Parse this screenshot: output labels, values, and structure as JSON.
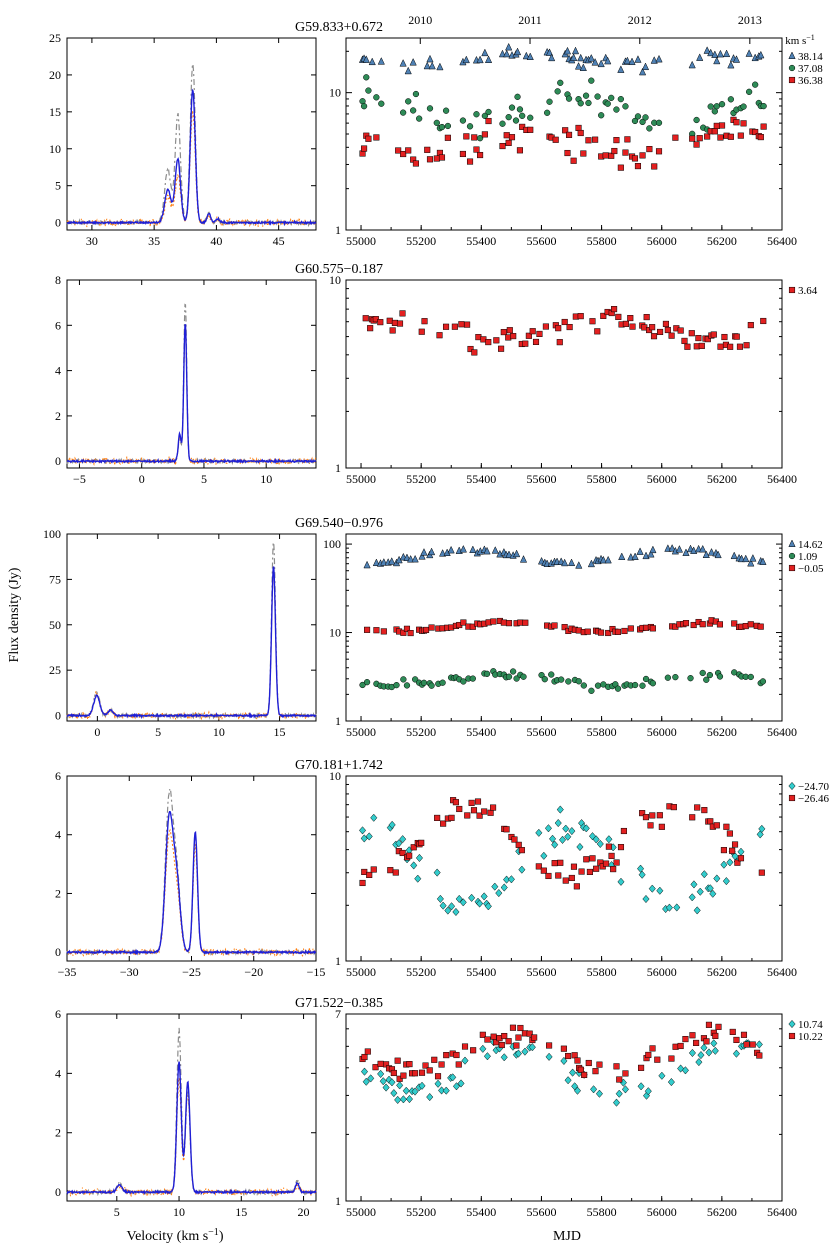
{
  "figure": {
    "ylabel": "Flux density (Jy)",
    "xlabel_spec": "Velocity (km s",
    "xlabel_spec_sup": "−1",
    "xlabel_spec_tail": ")",
    "xlabel_time": "MJD",
    "legend_unit": "km s",
    "legend_unit_sup": "−1",
    "year_ticks": [
      {
        "label": "2010",
        "mjd": 55197
      },
      {
        "label": "2011",
        "mjd": 55562
      },
      {
        "label": "2012",
        "mjd": 55927
      },
      {
        "label": "2013",
        "mjd": 56293
      }
    ],
    "colors": {
      "triangle": "#4f81b4",
      "circle": "#2e8b57",
      "square": "#e32020",
      "diamond": "#33cccc",
      "spec_main": "#1f1fd6",
      "spec_dash": "#8c8c8c",
      "spec_dot": "#ff7f0e"
    }
  },
  "chart_data": [
    {
      "type": "line",
      "source": "G59.833+0.672",
      "spectrum": {
        "xlim": [
          28,
          48
        ],
        "ylim": [
          -1,
          25
        ],
        "xticks": [
          30,
          35,
          40,
          45
        ],
        "yticks": [
          0,
          5,
          10,
          15,
          20,
          25
        ],
        "peaks": [
          {
            "v": 36.1,
            "a": 4.5,
            "w": 0.25,
            "dash": 7.2,
            "dot": 3.6
          },
          {
            "v": 36.9,
            "a": 8.6,
            "w": 0.22,
            "dash": 14.5,
            "dot": 6.5
          },
          {
            "v": 38.1,
            "a": 18.0,
            "w": 0.2,
            "dash": 21.5,
            "dot": 15.0
          },
          {
            "v": 39.4,
            "a": 1.2,
            "w": 0.15,
            "dash": 1.3,
            "dot": 1.0
          },
          {
            "v": 40.1,
            "a": 0.5,
            "w": 0.15,
            "dash": 0.6,
            "dot": 0.4
          }
        ]
      },
      "timeseries": {
        "log": true,
        "xlim": [
          54950,
          56400
        ],
        "ylim": [
          1,
          25
        ],
        "xticks": [
          55000,
          55200,
          55400,
          55600,
          55800,
          56000,
          56200,
          56400
        ],
        "yticks": [
          1,
          10
        ],
        "series": [
          {
            "name": "38.14",
            "marker": "triangle",
            "mean": 17.5,
            "scatter": 0.08,
            "wave": 0.04
          },
          {
            "name": "37.08",
            "marker": "circle",
            "mean": 7.6,
            "scatter": 0.16,
            "wave": 0.12
          },
          {
            "name": "36.38",
            "marker": "square",
            "mean": 4.3,
            "scatter": 0.18,
            "wave": 0.1
          }
        ]
      }
    },
    {
      "type": "line",
      "source": "G60.575−0.187",
      "spectrum": {
        "xlim": [
          -6,
          14
        ],
        "ylim": [
          -0.3,
          8
        ],
        "xticks": [
          -5,
          0,
          5,
          10
        ],
        "yticks": [
          0,
          2,
          4,
          6,
          8
        ],
        "peaks": [
          {
            "v": 3.05,
            "a": 1.2,
            "w": 0.12,
            "dash": 1.0,
            "dot": 1.1
          },
          {
            "v": 3.5,
            "a": 6.1,
            "w": 0.12,
            "dash": 7.0,
            "dot": 5.8
          }
        ]
      },
      "timeseries": {
        "log": true,
        "xlim": [
          54950,
          56400
        ],
        "ylim": [
          1,
          10
        ],
        "xticks": [
          55000,
          55200,
          55400,
          55600,
          55800,
          56000,
          56200,
          56400
        ],
        "yticks": [
          1,
          10
        ],
        "series": [
          {
            "name": "3.64",
            "marker": "square",
            "mean": 5.4,
            "scatter": 0.1,
            "wave": 0.05
          }
        ]
      }
    },
    {
      "type": "line",
      "source": "G69.540−0.976",
      "spectrum": {
        "xlim": [
          -2.5,
          18
        ],
        "ylim": [
          -3,
          100
        ],
        "xticks": [
          0,
          5,
          10,
          15
        ],
        "yticks": [
          0,
          25,
          50,
          75,
          100
        ],
        "peaks": [
          {
            "v": -0.05,
            "a": 11.0,
            "w": 0.25,
            "dash": 12.5,
            "dot": 11.5
          },
          {
            "v": 1.09,
            "a": 3.0,
            "w": 0.2,
            "dash": 3.3,
            "dot": 3.1
          },
          {
            "v": 14.5,
            "a": 82.0,
            "w": 0.16,
            "dash": 96.0,
            "dot": 80.0
          }
        ]
      },
      "timeseries": {
        "log": true,
        "xlim": [
          54950,
          56400
        ],
        "ylim": [
          1,
          130
        ],
        "xticks": [
          55000,
          55200,
          55400,
          55600,
          55800,
          56000,
          56200,
          56400
        ],
        "yticks": [
          1,
          10,
          100
        ],
        "series": [
          {
            "name": "14.62",
            "marker": "triangle",
            "mean": 72.0,
            "scatter": 0.05,
            "wave": 0.08
          },
          {
            "name": "1.09",
            "marker": "circle",
            "mean": 2.9,
            "scatter": 0.07,
            "wave": 0.06
          },
          {
            "name": "−0.05",
            "marker": "square",
            "mean": 11.5,
            "scatter": 0.04,
            "wave": 0.05
          }
        ]
      }
    },
    {
      "type": "line",
      "source": "G70.181+1.742",
      "spectrum": {
        "xlim": [
          -35,
          -15
        ],
        "ylim": [
          -0.3,
          6
        ],
        "xticks": [
          -35,
          -30,
          -25,
          -20,
          -15
        ],
        "yticks": [
          0,
          2,
          4,
          6
        ],
        "peaks": [
          {
            "v": -26.8,
            "a": 4.4,
            "w": 0.3,
            "dash": 5.1,
            "dot": 3.8
          },
          {
            "v": -26.2,
            "a": 2.4,
            "w": 0.3,
            "dash": 2.6,
            "dot": 2.0
          },
          {
            "v": -24.7,
            "a": 4.1,
            "w": 0.18,
            "dash": 4.0,
            "dot": 3.6
          }
        ]
      },
      "timeseries": {
        "log": true,
        "xlim": [
          54950,
          56400
        ],
        "ylim": [
          1,
          10
        ],
        "xticks": [
          55000,
          55200,
          55400,
          55600,
          55800,
          56000,
          56200,
          56400
        ],
        "yticks": [
          1,
          10
        ],
        "series": [
          {
            "name": "−24.70",
            "marker": "diamond",
            "mean": 3.3,
            "scatter": 0.14,
            "wave": 0.22
          },
          {
            "name": "−26.46",
            "marker": "square",
            "mean": 4.3,
            "scatter": 0.12,
            "wave": 0.18
          }
        ]
      }
    },
    {
      "type": "line",
      "source": "G71.522−0.385",
      "spectrum": {
        "xlim": [
          1,
          21
        ],
        "ylim": [
          -0.3,
          6
        ],
        "xticks": [
          5,
          10,
          15,
          20
        ],
        "yticks": [
          0,
          2,
          4,
          6
        ],
        "peaks": [
          {
            "v": 5.2,
            "a": 0.25,
            "w": 0.2,
            "dash": 0.3,
            "dot": 0.2
          },
          {
            "v": 10.0,
            "a": 4.4,
            "w": 0.18,
            "dash": 5.5,
            "dot": 3.8
          },
          {
            "v": 10.7,
            "a": 3.7,
            "w": 0.18,
            "dash": 3.4,
            "dot": 3.3
          },
          {
            "v": 19.5,
            "a": 0.3,
            "w": 0.15,
            "dash": 0.4,
            "dot": 0.2
          }
        ]
      },
      "timeseries": {
        "log": true,
        "xlim": [
          54950,
          56400
        ],
        "ylim": [
          1,
          7
        ],
        "xticks": [
          55000,
          55200,
          55400,
          55600,
          55800,
          56000,
          56200,
          56400
        ],
        "yticks": [
          1,
          7
        ],
        "series": [
          {
            "name": "10.74",
            "marker": "diamond",
            "mean": 3.9,
            "scatter": 0.09,
            "wave": 0.1
          },
          {
            "name": "10.22",
            "marker": "square",
            "mean": 4.7,
            "scatter": 0.08,
            "wave": 0.08
          }
        ]
      }
    }
  ]
}
